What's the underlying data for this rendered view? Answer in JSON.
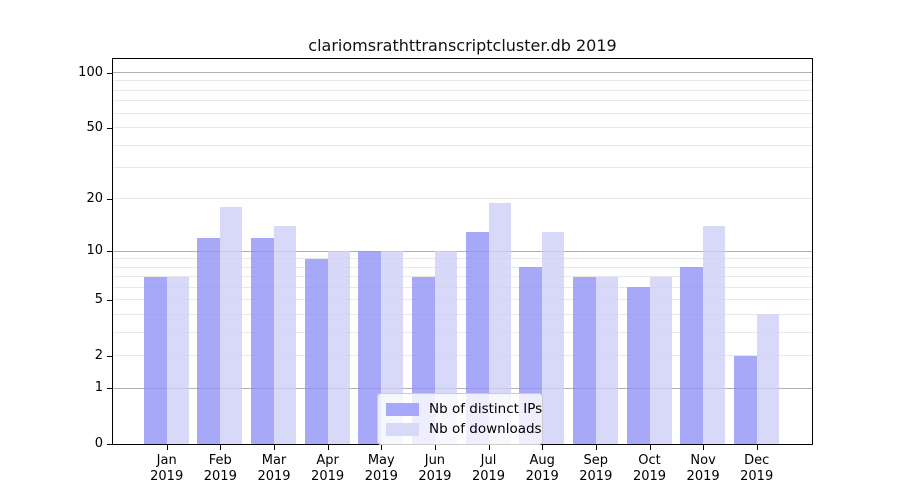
{
  "chart_data": {
    "type": "bar",
    "title": "clariomsrathttranscriptcluster.db 2019",
    "year_label": "2019",
    "categories": [
      "Jan",
      "Feb",
      "Mar",
      "Apr",
      "May",
      "Jun",
      "Jul",
      "Aug",
      "Sep",
      "Oct",
      "Nov",
      "Dec"
    ],
    "series": [
      {
        "name": "Nb of distinct IPs",
        "color": "#a8a8f8",
        "values": [
          7,
          12,
          12,
          9,
          10,
          7,
          13,
          8,
          7,
          6,
          8,
          2
        ]
      },
      {
        "name": "Nb of downloads",
        "color": "#d8d8f9",
        "values": [
          7,
          18,
          14,
          10,
          10,
          10,
          19,
          13,
          7,
          7,
          14,
          4
        ]
      }
    ],
    "y_axis": {
      "scale": "log1p",
      "tick_values": [
        0,
        1,
        2,
        5,
        10,
        20,
        50,
        100
      ],
      "tick_labels": [
        "0",
        "1",
        "2",
        "5",
        "10",
        "20",
        "50",
        "100"
      ],
      "major_gridlines": [
        1,
        10,
        100
      ],
      "minor_gridlines": [
        2,
        3,
        4,
        5,
        6,
        7,
        8,
        9,
        20,
        30,
        40,
        50,
        60,
        70,
        80,
        90
      ],
      "axis_max": 118
    },
    "legend": {
      "position": "lower center",
      "items": [
        "Nb of distinct IPs",
        "Nb of downloads"
      ]
    },
    "grid": true
  },
  "colors": {
    "bar_distinct_ips": "#a8a8f8",
    "bar_downloads": "#d8d8f9",
    "major_gridline": "#b0b0b0",
    "minor_gridline": "#e8e8e8",
    "axis": "#000000",
    "background": "#ffffff"
  }
}
